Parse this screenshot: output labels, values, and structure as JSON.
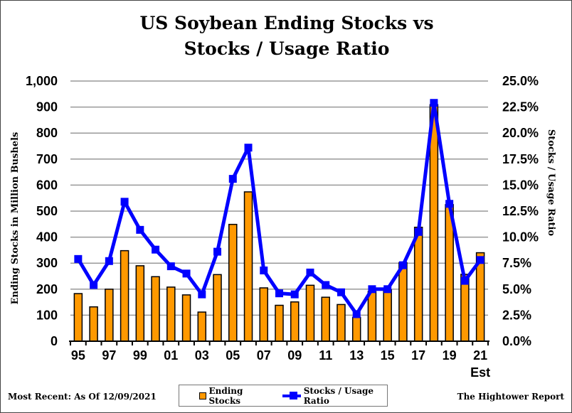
{
  "chart_data": {
    "type": "bar+line",
    "title": "US Soybean Ending Stocks vs Stocks / Usage Ratio",
    "title_lines": [
      "US Soybean Ending Stocks vs",
      "Stocks / Usage Ratio"
    ],
    "categories": [
      "95",
      "96",
      "97",
      "98",
      "99",
      "00",
      "01",
      "02",
      "03",
      "04",
      "05",
      "06",
      "07",
      "08",
      "09",
      "10",
      "11",
      "12",
      "13",
      "14",
      "15",
      "16",
      "17",
      "18",
      "19",
      "20",
      "21"
    ],
    "x_tick_labels": [
      "95",
      "97",
      "99",
      "01",
      "03",
      "05",
      "07",
      "09",
      "11",
      "13",
      "15",
      "17",
      "19",
      "21"
    ],
    "x_extra_label": "Est",
    "ylabel": "Ending Stocks in Million Bushels",
    "y2label": "Stocks / Usage Ratio",
    "ylim": [
      0,
      1000
    ],
    "y2lim": [
      0,
      25
    ],
    "y_ticks": [
      "0",
      "100",
      "200",
      "300",
      "400",
      "500",
      "600",
      "700",
      "800",
      "900",
      "1,000"
    ],
    "y2_ticks": [
      "0.0%",
      "2.5%",
      "5.0%",
      "7.5%",
      "10.0%",
      "12.5%",
      "15.0%",
      "17.5%",
      "20.0%",
      "22.5%",
      "25.0%"
    ],
    "grid": true,
    "series": [
      {
        "name": "Ending Stocks",
        "type": "bar",
        "color": "#FF9900",
        "values": [
          183,
          132,
          200,
          348,
          290,
          248,
          208,
          178,
          112,
          256,
          449,
          574,
          205,
          138,
          151,
          215,
          169,
          141,
          92,
          191,
          197,
          302,
          438,
          909,
          525,
          257,
          340
        ]
      },
      {
        "name": "Stocks / Usage Ratio",
        "type": "line",
        "axis": "right",
        "color": "#0000FF",
        "values": [
          7.9,
          5.4,
          7.7,
          13.4,
          10.7,
          8.8,
          7.2,
          6.5,
          4.5,
          8.6,
          15.6,
          18.6,
          6.8,
          4.6,
          4.5,
          6.6,
          5.4,
          4.7,
          2.6,
          5.0,
          5.0,
          7.3,
          10.5,
          22.9,
          13.2,
          5.8,
          7.8
        ]
      }
    ],
    "legend_position": "bottom"
  },
  "footer": {
    "left": "Most Recent: As Of 12/09/2021",
    "right": "The Hightower Report"
  }
}
